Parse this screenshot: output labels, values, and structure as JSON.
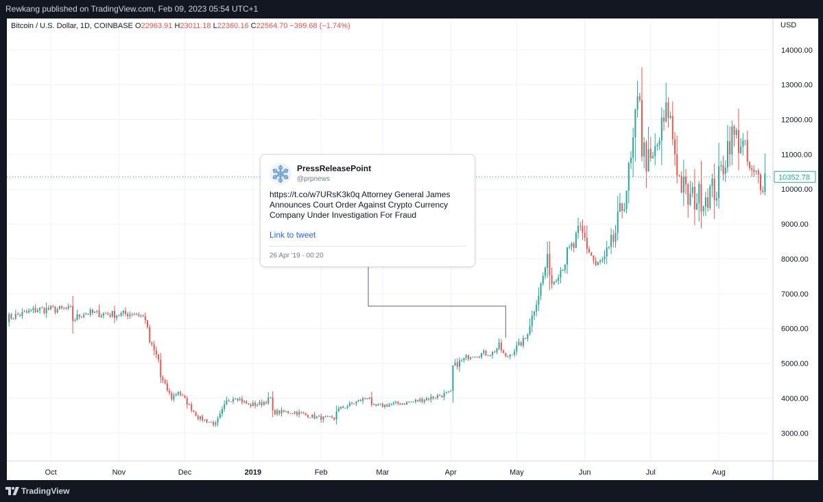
{
  "header": {
    "published": "Rewkang published on TradingView.com, Feb 09, 2023 05:54 UTC+1"
  },
  "legend": {
    "symbol": "Bitcoin / U.S. Dollar, 1D, COINBASE",
    "o_label": "O",
    "o_value": "22963.91",
    "h_label": "H",
    "h_value": "23011.18",
    "l_label": "L",
    "l_value": "22360.16",
    "c_label": "C",
    "c_value": "22564.70",
    "change": "−399.68 (−1.74%)"
  },
  "colors": {
    "up": "#26a69a",
    "down": "#ef5350",
    "link": "#2962ff",
    "background": "#131722"
  },
  "chart_data": {
    "type": "candlestick",
    "currency_label": "USD",
    "y_ticks": [
      "3000.00",
      "4000.00",
      "5000.00",
      "6000.00",
      "7000.00",
      "8000.00",
      "9000.00",
      "10000.00",
      "11000.00",
      "12000.00",
      "13000.00",
      "14000.00"
    ],
    "x_labels": [
      "Oct",
      "Nov",
      "Dec",
      "2019",
      "Feb",
      "Mar",
      "Apr",
      "May",
      "Jun",
      "Jul",
      "Aug"
    ],
    "ylim": [
      2200,
      14900
    ],
    "x_start": "2018-09-11",
    "x_end": "2019-08-25",
    "last_price": "10352.78",
    "last_price_value": 10352.78,
    "close_path": [
      [
        "2018-09-11",
        6300
      ],
      [
        "2018-09-20",
        6450
      ],
      [
        "2018-09-25",
        6550
      ],
      [
        "2018-10-10",
        6550
      ],
      [
        "2018-10-11",
        6250
      ],
      [
        "2018-10-16",
        6450
      ],
      [
        "2018-11-01",
        6400
      ],
      [
        "2018-11-08",
        6450
      ],
      [
        "2018-11-13",
        6300
      ],
      [
        "2018-11-15",
        5600
      ],
      [
        "2018-11-19",
        5100
      ],
      [
        "2018-11-20",
        4600
      ],
      [
        "2018-11-25",
        4000
      ],
      [
        "2018-11-28",
        4200
      ],
      [
        "2018-12-07",
        3450
      ],
      [
        "2018-12-15",
        3250
      ],
      [
        "2018-12-20",
        3900
      ],
      [
        "2018-12-24",
        4050
      ],
      [
        "2018-12-30",
        3800
      ],
      [
        "2019-01-05",
        3850
      ],
      [
        "2019-01-09",
        4000
      ],
      [
        "2019-01-10",
        3600
      ],
      [
        "2019-01-20",
        3600
      ],
      [
        "2019-01-30",
        3450
      ],
      [
        "2019-02-07",
        3400
      ],
      [
        "2019-02-08",
        3650
      ],
      [
        "2019-02-23",
        4050
      ],
      [
        "2019-02-24",
        3750
      ],
      [
        "2019-03-15",
        3900
      ],
      [
        "2019-04-01",
        4150
      ],
      [
        "2019-04-02",
        4900
      ],
      [
        "2019-04-10",
        5250
      ],
      [
        "2019-04-20",
        5300
      ],
      [
        "2019-04-23",
        5500
      ],
      [
        "2019-04-26",
        5150
      ],
      [
        "2019-05-05",
        5700
      ],
      [
        "2019-05-11",
        7000
      ],
      [
        "2019-05-15",
        8000
      ],
      [
        "2019-05-17",
        7300
      ],
      [
        "2019-05-22",
        7800
      ],
      [
        "2019-05-30",
        8700
      ],
      [
        "2019-06-01",
        8550
      ],
      [
        "2019-06-06",
        7800
      ],
      [
        "2019-06-12",
        8100
      ],
      [
        "2019-06-17",
        9200
      ],
      [
        "2019-06-22",
        10700
      ],
      [
        "2019-06-26",
        12900
      ],
      [
        "2019-06-27",
        11200
      ],
      [
        "2019-07-01",
        10600
      ],
      [
        "2019-07-09",
        12300
      ],
      [
        "2019-07-14",
        10300
      ],
      [
        "2019-07-18",
        9700
      ],
      [
        "2019-07-24",
        9800
      ],
      [
        "2019-07-31",
        10000
      ],
      [
        "2019-08-06",
        11500
      ],
      [
        "2019-08-11",
        11400
      ],
      [
        "2019-08-16",
        10300
      ],
      [
        "2019-08-22",
        10352
      ]
    ],
    "annotation_marker": {
      "date": "2019-04-26",
      "price": 5150
    }
  },
  "tweet": {
    "name": "PressReleasePoint",
    "handle": "@prpnews",
    "text": "https://t.co/w7URsK3k0q Attorney General James Announces Court Order Against Crypto Currency Company Under Investigation For Fraud",
    "link_label": "Link to tweet",
    "date": "26 Apr '19 · 00:20"
  },
  "footer": {
    "brand": "TradingView",
    "logo_icon": "tradingview-logo-icon"
  }
}
